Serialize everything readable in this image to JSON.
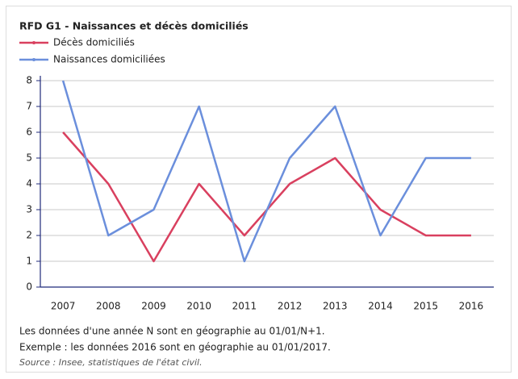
{
  "chart_data": {
    "type": "line",
    "title": "RFD G1 - Naissances et décès domiciliés",
    "categories": [
      "2007",
      "2008",
      "2009",
      "2010",
      "2011",
      "2012",
      "2013",
      "2014",
      "2015",
      "2016"
    ],
    "series": [
      {
        "name": "Décès domiciliés",
        "color": "#d9405f",
        "values": [
          6,
          4,
          1,
          4,
          2,
          4,
          5,
          3,
          2,
          2
        ]
      },
      {
        "name": "Naissances domiciliées",
        "color": "#6b8fdc",
        "values": [
          8,
          2,
          3,
          7,
          1,
          5,
          7,
          2,
          5,
          5
        ]
      }
    ],
    "ylim": [
      0,
      8
    ],
    "yticks": [
      0,
      1,
      2,
      3,
      4,
      5,
      6,
      7,
      8
    ],
    "grid": true,
    "notes": [
      "Les données d'une année N sont en géographie au 01/01/N+1.",
      "Exemple : les données 2016 sont en géographie au 01/01/2017."
    ],
    "source": "Source : Insee, statistiques de l'état civil."
  }
}
